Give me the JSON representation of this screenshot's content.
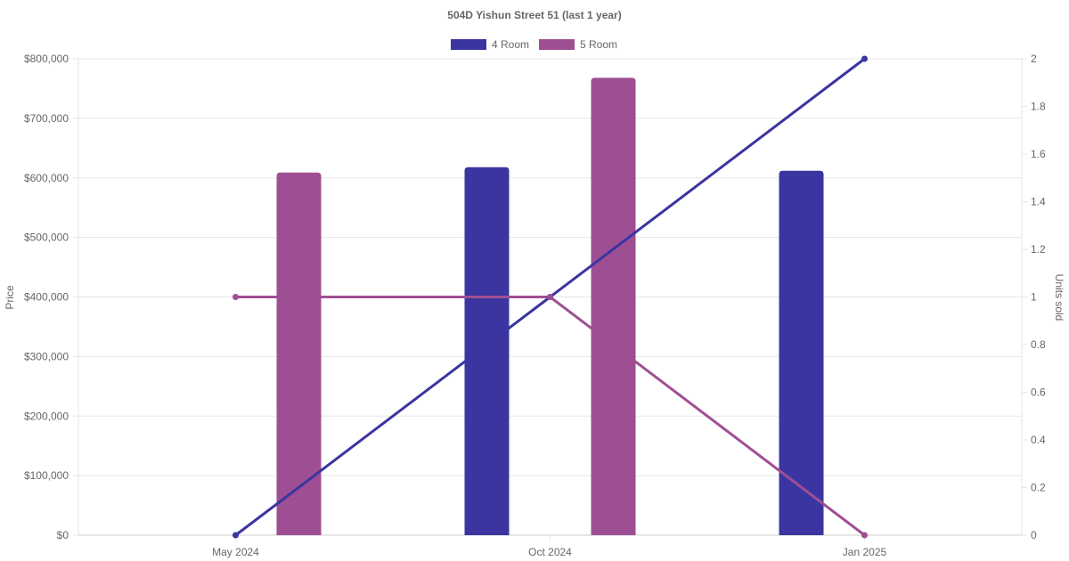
{
  "chart_data": {
    "type": "bar",
    "title": "504D Yishun Street 51 (last 1 year)",
    "categories": [
      "May 2024",
      "Oct 2024",
      "Jan 2025"
    ],
    "series": [
      {
        "name": "4 Room",
        "color": "#3a35a0",
        "price_values": [
          null,
          618000,
          612000
        ],
        "units_sold": [
          0,
          1,
          2
        ]
      },
      {
        "name": "5 Room",
        "color": "#9e4f93",
        "price_values": [
          609000,
          768000,
          null
        ],
        "units_sold": [
          1,
          1,
          0
        ]
      }
    ],
    "y_left": {
      "label": "Price",
      "ylim": [
        0,
        800000
      ],
      "ticks": [
        0,
        100000,
        200000,
        300000,
        400000,
        500000,
        600000,
        700000,
        800000
      ],
      "tick_labels": [
        "$0",
        "$100,000",
        "$200,000",
        "$300,000",
        "$400,000",
        "$500,000",
        "$600,000",
        "$700,000",
        "$800,000"
      ]
    },
    "y_right": {
      "label": "Units sold",
      "ylim": [
        0,
        2
      ],
      "ticks": [
        0,
        0.2,
        0.4,
        0.6,
        0.8,
        1,
        1.2,
        1.4,
        1.6,
        1.8,
        2
      ],
      "tick_labels": [
        "0",
        "0.2",
        "0.4",
        "0.6",
        "0.8",
        "1",
        "1.2",
        "1.4",
        "1.6",
        "1.8",
        "2"
      ]
    },
    "grid": true,
    "legend_position": "top-center"
  }
}
